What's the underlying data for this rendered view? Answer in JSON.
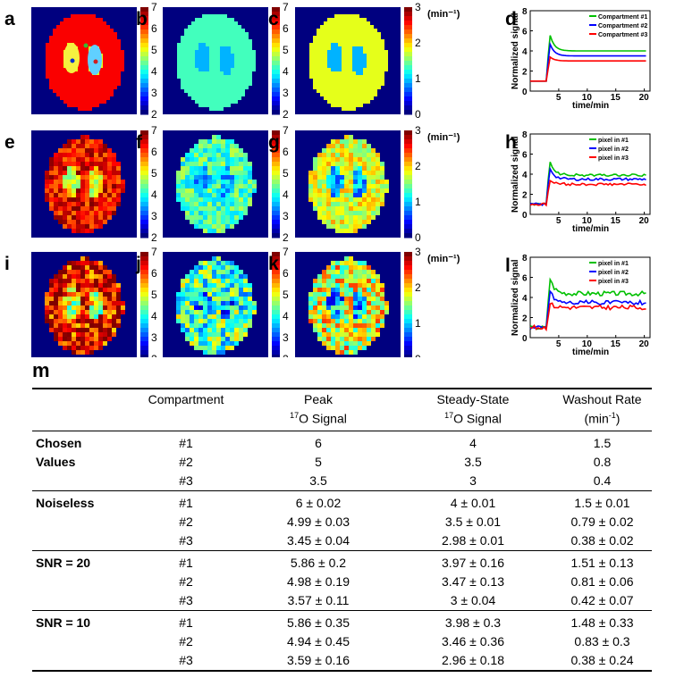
{
  "figure": {
    "panel_labels": [
      "a",
      "b",
      "c",
      "d",
      "e",
      "f",
      "g",
      "h",
      "i",
      "j",
      "k",
      "l",
      "m"
    ],
    "colorbar_ticks_left": [
      "7",
      "6",
      "5",
      "4",
      "3",
      "2"
    ],
    "colorbar_ticks_right": [
      "3",
      "2",
      "1",
      "0"
    ],
    "rate_unit": "(min⁻¹)",
    "maps": {
      "row_a_sizes": "phantom",
      "colors": {
        "bg": "#00007f",
        "body": "#e8410a",
        "ventricle": "#f5e840"
      }
    }
  },
  "chart_data": [
    {
      "type": "line",
      "panel": "d",
      "xlabel": "time/min",
      "ylabel": "Normalized signal",
      "xticks": [
        "5",
        "10",
        "15",
        "20"
      ],
      "yticks": [
        "0",
        "2",
        "4",
        "6",
        "8"
      ],
      "xlim": [
        0,
        21
      ],
      "ylim": [
        0,
        8
      ],
      "series": [
        {
          "name": "Compartment #1",
          "color": "#00c000",
          "peak": 6,
          "steady": 4
        },
        {
          "name": "Compartment #2",
          "color": "#0000ff",
          "peak": 5,
          "steady": 3.5
        },
        {
          "name": "Compartment #3",
          "color": "#ff0000",
          "peak": 3.5,
          "steady": 3
        }
      ]
    },
    {
      "type": "line",
      "panel": "h",
      "xlabel": "time/min",
      "ylabel": "Normalized signal",
      "xticks": [
        "5",
        "10",
        "15",
        "20"
      ],
      "yticks": [
        "0",
        "2",
        "4",
        "6",
        "8"
      ],
      "xlim": [
        0,
        21
      ],
      "ylim": [
        0,
        8
      ],
      "series": [
        {
          "name": "pixel in #1",
          "color": "#00c000",
          "peak": 5.7,
          "steady": 3.9
        },
        {
          "name": "pixel in #2",
          "color": "#0000ff",
          "peak": 4.9,
          "steady": 3.5
        },
        {
          "name": "pixel in #3",
          "color": "#ff0000",
          "peak": 3.5,
          "steady": 3.0
        }
      ]
    },
    {
      "type": "line",
      "panel": "l",
      "xlabel": "time/min",
      "ylabel": "Normalized signal",
      "xticks": [
        "5",
        "10",
        "15",
        "20"
      ],
      "yticks": [
        "0",
        "2",
        "4",
        "6",
        "8"
      ],
      "xlim": [
        0,
        21
      ],
      "ylim": [
        0,
        8
      ],
      "series": [
        {
          "name": "pixel in #1",
          "color": "#00c000",
          "peak": 6.3,
          "steady": 4.4
        },
        {
          "name": "pixel in #2",
          "color": "#0000ff",
          "peak": 5.0,
          "steady": 3.5
        },
        {
          "name": "pixel in #3",
          "color": "#ff0000",
          "peak": 3.5,
          "steady": 3.0
        }
      ]
    }
  ],
  "table": {
    "panel_label": "m",
    "headers": {
      "compartment": "Compartment",
      "peak_line1": "Peak",
      "peak_line2": "O Signal",
      "steady_line1": "Steady-State",
      "steady_line2": "O Signal",
      "washout_line1": "Washout Rate",
      "washout_line2": "(min",
      "washout_line2_end": ")",
      "sup17": "17",
      "supm1": "-1"
    },
    "groups": [
      {
        "label1": "Chosen",
        "label2": "Values",
        "rows": [
          [
            "#1",
            "6",
            "4",
            "1.5"
          ],
          [
            "#2",
            "5",
            "3.5",
            "0.8"
          ],
          [
            "#3",
            "3.5",
            "3",
            "0.4"
          ]
        ]
      },
      {
        "label1": "Noiseless",
        "label2": "",
        "rows": [
          [
            "#1",
            "6 ± 0.02",
            "4 ± 0.01",
            "1.5 ± 0.01"
          ],
          [
            "#2",
            "4.99 ± 0.03",
            "3.5 ± 0.01",
            "0.79 ± 0.02"
          ],
          [
            "#3",
            "3.45 ± 0.04",
            "2.98 ± 0.01",
            "0.38 ± 0.02"
          ]
        ]
      },
      {
        "label1": "SNR = 20",
        "label2": "",
        "rows": [
          [
            "#1",
            "5.86 ± 0.2",
            "3.97 ± 0.16",
            "1.51 ± 0.13"
          ],
          [
            "#2",
            "4.98 ± 0.19",
            "3.47 ± 0.13",
            "0.81 ± 0.06"
          ],
          [
            "#3",
            "3.57 ± 0.11",
            "3 ± 0.04",
            "0.42 ± 0.07"
          ]
        ]
      },
      {
        "label1": "SNR = 10",
        "label2": "",
        "rows": [
          [
            "#1",
            "5.86 ± 0.35",
            "3.98 ± 0.3",
            "1.48 ± 0.33"
          ],
          [
            "#2",
            "4.94 ± 0.45",
            "3.46 ± 0.36",
            "0.83 ± 0.3"
          ],
          [
            "#3",
            "3.59 ± 0.16",
            "2.96 ± 0.18",
            "0.38 ± 0.24"
          ]
        ]
      }
    ]
  }
}
